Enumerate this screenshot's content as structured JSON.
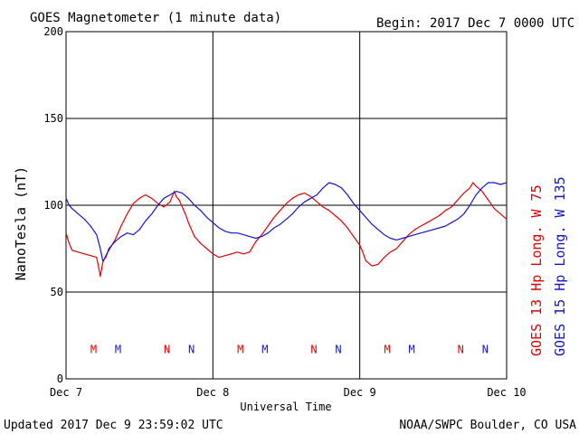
{
  "header": {
    "title": "GOES Magnetometer (1 minute data)",
    "begin": "Begin:  2017 Dec 7 0000 UTC"
  },
  "footer": {
    "updated": "Updated 2017 Dec  9 23:59:02 UTC",
    "source": "NOAA/SWPC Boulder, CO USA"
  },
  "colors": {
    "goes13": "#e00000",
    "goes15": "#1414d2",
    "grid": "#000000"
  },
  "chart_data": {
    "type": "line",
    "title": "GOES Magnetometer (1 minute data)",
    "xlabel": "Universal Time",
    "ylabel": "NanoTesla (nT)",
    "xlim": [
      0,
      72
    ],
    "ylim": [
      0,
      200
    ],
    "x_unit": "hours since 2017 Dec 7 0000 UTC",
    "xticks": [
      {
        "x": 0,
        "label": "Dec 7"
      },
      {
        "x": 24,
        "label": "Dec 8"
      },
      {
        "x": 48,
        "label": "Dec 9"
      },
      {
        "x": 72,
        "label": "Dec 10"
      }
    ],
    "yticks": [
      0,
      50,
      100,
      150,
      200
    ],
    "grid": true,
    "series": [
      {
        "name": "GOES 13 Hp  Long. W 75",
        "color": "#e00000",
        "x": [
          0,
          0.5,
          1,
          2,
          3,
          4,
          5,
          5.4,
          5.6,
          6,
          6.5,
          7,
          8,
          9,
          10,
          11,
          12,
          13,
          14,
          15,
          16,
          17,
          17.7,
          18,
          18.5,
          19,
          19.5,
          20,
          21,
          22,
          23,
          24,
          25,
          26,
          27,
          28,
          29,
          30,
          31,
          32,
          33,
          34,
          35,
          36,
          37,
          38,
          39,
          40,
          41,
          42,
          43,
          44,
          45,
          46,
          47,
          48,
          48.5,
          49,
          50,
          51,
          52,
          53,
          54,
          55,
          56,
          57,
          58,
          59,
          60,
          61,
          62,
          63,
          64,
          65,
          66,
          66.5,
          67,
          68,
          69,
          70,
          71,
          72
        ],
        "values": [
          84,
          78,
          74,
          73,
          72,
          71,
          70,
          63,
          59,
          67,
          71,
          74,
          80,
          88,
          95,
          101,
          104,
          106,
          104,
          101,
          99,
          102,
          108,
          105,
          103,
          99,
          95,
          90,
          82,
          78,
          75,
          72,
          70,
          71,
          72,
          73,
          72,
          73,
          79,
          83,
          88,
          93,
          97,
          101,
          104,
          106,
          107,
          105,
          102,
          99,
          97,
          94,
          91,
          87,
          82,
          77,
          73,
          68,
          65,
          66,
          70,
          73,
          75,
          79,
          83,
          86,
          88,
          90,
          92,
          94,
          97,
          99,
          103,
          107,
          110,
          113,
          111,
          108,
          103,
          98,
          95,
          92
        ]
      },
      {
        "name": "GOES 15 Hp  Long. W 135",
        "color": "#1414d2",
        "x": [
          0,
          0.5,
          1,
          2,
          3,
          4,
          5,
          5.6,
          6,
          6.5,
          7,
          8,
          9,
          10,
          11,
          12,
          13,
          14,
          15,
          16,
          17,
          18,
          19,
          20,
          21,
          22,
          23,
          24,
          25,
          26,
          27,
          28,
          29,
          30,
          31,
          32,
          33,
          34,
          35,
          36,
          37,
          38,
          39,
          40,
          41,
          42,
          43,
          44,
          45,
          46,
          47,
          48,
          49,
          50,
          51,
          52,
          53,
          54,
          55,
          56,
          57,
          58,
          59,
          60,
          61,
          62,
          63,
          64,
          65,
          66,
          67,
          68,
          69,
          70,
          71,
          72
        ],
        "values": [
          104,
          100,
          98,
          95,
          92,
          88,
          83,
          75,
          68,
          70,
          75,
          79,
          82,
          84,
          83,
          86,
          91,
          95,
          100,
          104,
          106,
          108,
          107,
          104,
          100,
          97,
          93,
          90,
          87,
          85,
          84,
          84,
          83,
          82,
          81,
          82,
          84,
          87,
          89,
          92,
          95,
          99,
          102,
          104,
          106,
          110,
          113,
          112,
          110,
          106,
          101,
          97,
          93,
          89,
          86,
          83,
          81,
          80,
          81,
          82,
          83,
          84,
          85,
          86,
          87,
          88,
          90,
          92,
          95,
          100,
          106,
          110,
          113,
          113,
          112,
          113
        ]
      }
    ],
    "event_markers": [
      {
        "x": 4.5,
        "label": "M",
        "series": 0
      },
      {
        "x": 8.5,
        "label": "M",
        "series": 1
      },
      {
        "x": 16.5,
        "label": "N",
        "series": 0
      },
      {
        "x": 20.5,
        "label": "N",
        "series": 1
      },
      {
        "x": 28.5,
        "label": "M",
        "series": 0
      },
      {
        "x": 32.5,
        "label": "M",
        "series": 1
      },
      {
        "x": 40.5,
        "label": "N",
        "series": 0
      },
      {
        "x": 44.5,
        "label": "N",
        "series": 1
      },
      {
        "x": 52.5,
        "label": "M",
        "series": 0
      },
      {
        "x": 56.5,
        "label": "M",
        "series": 1
      },
      {
        "x": 64.5,
        "label": "N",
        "series": 0
      },
      {
        "x": 68.5,
        "label": "N",
        "series": 1
      }
    ],
    "marker_level": 17
  }
}
